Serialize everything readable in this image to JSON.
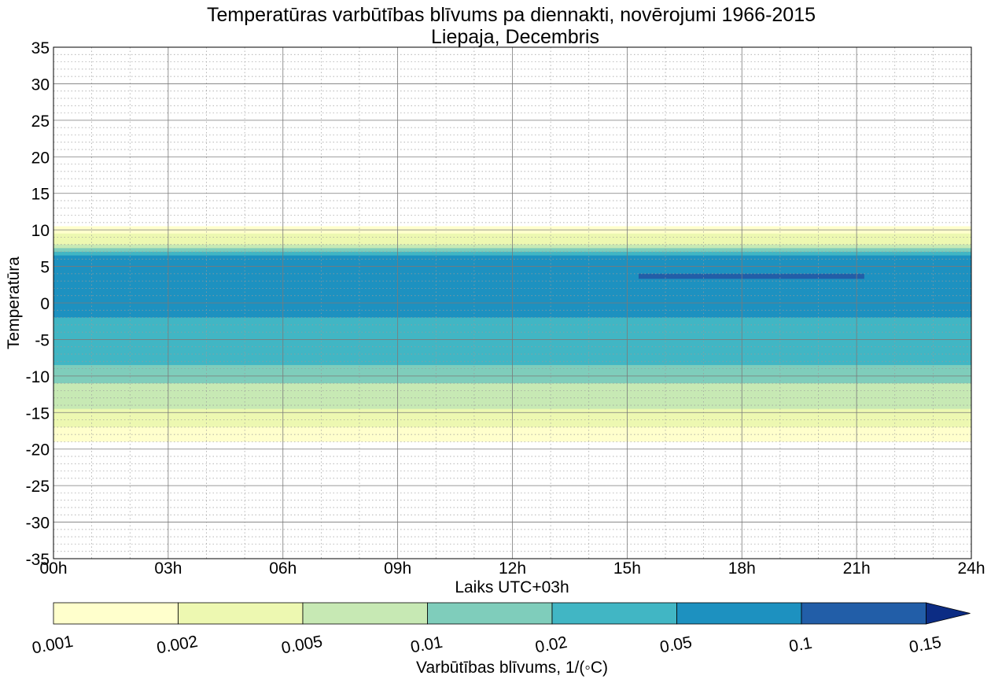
{
  "chart_data": {
    "type": "heatmap",
    "title": "Temperatūras varbūtības blīvums pa diennakti, novērojumi 1966-2015",
    "subtitle": "Liepaja, Decembris",
    "xlabel": "Laiks UTC+03h",
    "ylabel": "Temperatūra",
    "xlim": [
      0,
      24
    ],
    "ylim": [
      -35,
      35
    ],
    "x_ticks": [
      "00h",
      "03h",
      "06h",
      "09h",
      "12h",
      "15h",
      "18h",
      "21h",
      "24h"
    ],
    "y_ticks": [
      "35",
      "30",
      "25",
      "20",
      "15",
      "10",
      "5",
      "0",
      "-5",
      "-10",
      "-15",
      "-20",
      "-25",
      "-30",
      "-35"
    ],
    "grid": true,
    "colorbar": {
      "label": "Varbūtības blīvums, 1/(◦C)",
      "levels": [
        "0.001",
        "0.002",
        "0.005",
        "0.01",
        "0.02",
        "0.05",
        "0.1",
        "0.15"
      ],
      "colors": [
        "#ffffcc",
        "#edf8b1",
        "#c7e9b4",
        "#7fcdbb",
        "#41b6c4",
        "#1d91c0",
        "#225ea8",
        "#0c2c84"
      ],
      "extend": "max"
    },
    "bands": [
      {
        "level": "0.001",
        "x": [
          0,
          24
        ],
        "temp_range": [
          -19,
          10.5
        ]
      },
      {
        "level": "0.002",
        "x": [
          0,
          24
        ],
        "temp_range": [
          -17,
          9.5
        ]
      },
      {
        "level": "0.005",
        "x": [
          0,
          24
        ],
        "temp_range": [
          -14.5,
          8
        ]
      },
      {
        "level": "0.01",
        "x": [
          0,
          24
        ],
        "temp_range": [
          -11,
          7.5
        ]
      },
      {
        "level": "0.02",
        "x": [
          0,
          24
        ],
        "temp_range": [
          -8.5,
          7
        ]
      },
      {
        "level": "0.05",
        "x": [
          0,
          24
        ],
        "temp_range": [
          -2,
          6.5
        ]
      },
      {
        "level": "0.1",
        "x": [
          15.3,
          21.2
        ],
        "temp_range": [
          3.3,
          4
        ]
      }
    ]
  }
}
